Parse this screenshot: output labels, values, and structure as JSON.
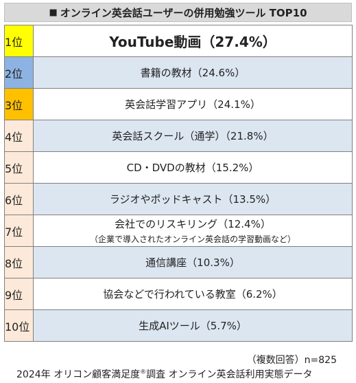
{
  "title": {
    "marker": "■",
    "text": "オンライン英会話ユーザーの併用勉強ツール TOP10"
  },
  "rows": [
    {
      "rank": "1位",
      "item": "YouTube動画（27.4%）",
      "note": "",
      "rank_color": "#ffff00",
      "row_color": "#ffffff"
    },
    {
      "rank": "2位",
      "item": "書籍の教材（24.6%）",
      "note": "",
      "rank_color": "#8db3e2",
      "row_color": "#dce6f1"
    },
    {
      "rank": "3位",
      "item": "英会話学習アプリ（24.1%）",
      "note": "",
      "rank_color": "#ffc000",
      "row_color": "#ffffff"
    },
    {
      "rank": "4位",
      "item": "英会話スクール（通学）（21.8%）",
      "note": "",
      "rank_color": "#fde9d9",
      "row_color": "#dce6f1"
    },
    {
      "rank": "5位",
      "item": "CD・DVDの教材（15.2%）",
      "note": "",
      "rank_color": "#fde9d9",
      "row_color": "#ffffff"
    },
    {
      "rank": "6位",
      "item": "ラジオやポッドキャスト（13.5%）",
      "note": "",
      "rank_color": "#fde9d9",
      "row_color": "#dce6f1"
    },
    {
      "rank": "7位",
      "item": "会社でのリスキリング（12.4%）",
      "note": "（企業で導入されたオンライン英会話の学習動画など）",
      "rank_color": "#fde9d9",
      "row_color": "#ffffff"
    },
    {
      "rank": "8位",
      "item": "通信講座（10.3%）",
      "note": "",
      "rank_color": "#fde9d9",
      "row_color": "#dce6f1"
    },
    {
      "rank": "9位",
      "item": "協会などで行われている教室（6.2%）",
      "note": "",
      "rank_color": "#fde9d9",
      "row_color": "#ffffff"
    },
    {
      "rank": "10位",
      "item": "生成AIツール（5.7%）",
      "note": "",
      "rank_color": "#fde9d9",
      "row_color": "#dce6f1"
    }
  ],
  "footer": {
    "sample": "（複数回答）n=825",
    "source_pre": "2024年 オリコン顧客満足度",
    "registered": "®",
    "source_post": "調査 オンライン英会話利用実態データ"
  }
}
